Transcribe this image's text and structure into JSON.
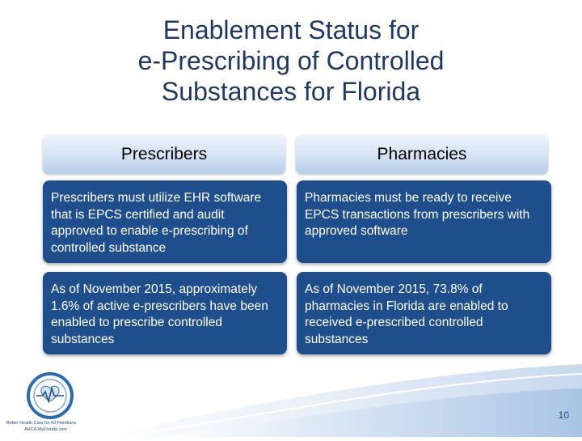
{
  "slide": {
    "title_line1": "Enablement Status for",
    "title_line2": "e-Prescribing of Controlled",
    "title_line3": "Substances for Florida",
    "page_number": "10"
  },
  "columns": [
    {
      "header": "Prescribers",
      "cells": [
        "Prescribers must utilize EHR software that is EPCS certified and audit approved to enable e-prescribing of controlled substance",
        "As of November 2015, approximately 1.6% of active e-prescribers have been enabled to prescribe controlled substances"
      ]
    },
    {
      "header": "Pharmacies",
      "cells": [
        "Pharmacies must be ready to receive EPCS transactions from prescribers with approved software",
        "As of November 2015, 73.8% of pharmacies in Florida are enabled to received e-prescribed controlled substances"
      ]
    }
  ],
  "logo": {
    "tagline": "Better Health Care for All Floridians",
    "org": "AHCA.MyFlorida.com"
  },
  "colors": {
    "title": "#1f3864",
    "card": "#1f4e8c",
    "header_gradient_top": "#eef4fb",
    "header_gradient_bottom": "#b7cde8"
  }
}
